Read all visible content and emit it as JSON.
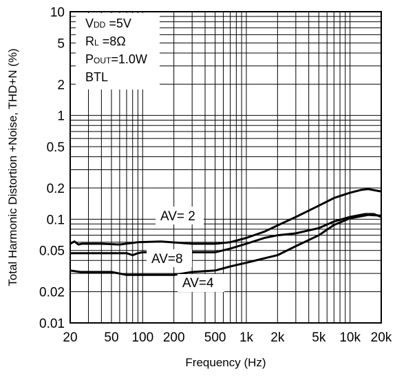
{
  "chart_data": {
    "type": "line",
    "title": "",
    "xlabel": "Frequency (Hz)",
    "ylabel": "Total Harmonic Distortion +Noise, THD+N (%)",
    "x_scale": "log",
    "y_scale": "log",
    "xlim": [
      20,
      20000
    ],
    "ylim": [
      0.01,
      10
    ],
    "grid": true,
    "x_ticks": [
      {
        "value": 20,
        "label": "20"
      },
      {
        "value": 50,
        "label": "50"
      },
      {
        "value": 100,
        "label": "100"
      },
      {
        "value": 200,
        "label": "200"
      },
      {
        "value": 500,
        "label": "500"
      },
      {
        "value": 1000,
        "label": "1k"
      },
      {
        "value": 2000,
        "label": "2k"
      },
      {
        "value": 5000,
        "label": "5k"
      },
      {
        "value": 10000,
        "label": "10k"
      },
      {
        "value": 20000,
        "label": "20k"
      }
    ],
    "y_ticks": [
      {
        "value": 10,
        "label": "10"
      },
      {
        "value": 5,
        "label": "5"
      },
      {
        "value": 2,
        "label": "2"
      },
      {
        "value": 1,
        "label": "1"
      },
      {
        "value": 0.5,
        "label": "0.5"
      },
      {
        "value": 0.2,
        "label": "0.2"
      },
      {
        "value": 0.1,
        "label": "0.1"
      },
      {
        "value": 0.05,
        "label": "0.05"
      },
      {
        "value": 0.02,
        "label": "0.02"
      },
      {
        "value": 0.01,
        "label": "0.01"
      }
    ],
    "conditions": {
      "vdd": {
        "main": "V",
        "sub": "DD",
        "value": " =5V"
      },
      "rl": {
        "main": "R",
        "sub": "L",
        "value": " =8Ω"
      },
      "pout": {
        "main": "P",
        "sub": "OUT",
        "value": "=1.0W"
      },
      "mode": "BTL"
    },
    "series": [
      {
        "name": "AV= 2",
        "x": [
          20,
          22,
          24,
          26,
          30,
          40,
          60,
          90,
          150,
          300,
          500,
          700,
          1000,
          1500,
          2000,
          3000,
          5000,
          7000,
          10000,
          13000,
          15000,
          20000
        ],
        "y": [
          0.058,
          0.061,
          0.057,
          0.058,
          0.058,
          0.058,
          0.057,
          0.06,
          0.061,
          0.058,
          0.058,
          0.06,
          0.066,
          0.076,
          0.087,
          0.105,
          0.135,
          0.16,
          0.18,
          0.192,
          0.195,
          0.185
        ]
      },
      {
        "name": "AV=8",
        "x": [
          20,
          30,
          50,
          70,
          80,
          90,
          100,
          200,
          300,
          500,
          700,
          1000,
          1500,
          2000,
          3000,
          5000,
          7000,
          10000,
          14000,
          17000,
          20000
        ],
        "y": [
          0.047,
          0.047,
          0.047,
          0.047,
          0.045,
          0.047,
          0.048,
          0.048,
          0.048,
          0.048,
          0.052,
          0.058,
          0.066,
          0.07,
          0.073,
          0.082,
          0.095,
          0.105,
          0.112,
          0.112,
          0.105
        ]
      },
      {
        "name": "AV=4",
        "x": [
          20,
          25,
          30,
          50,
          70,
          90,
          100,
          150,
          200,
          300,
          500,
          700,
          1000,
          1500,
          2000,
          3000,
          5000,
          7000,
          10000,
          15000,
          20000
        ],
        "y": [
          0.032,
          0.031,
          0.031,
          0.031,
          0.029,
          0.029,
          0.029,
          0.029,
          0.029,
          0.031,
          0.032,
          0.035,
          0.038,
          0.042,
          0.045,
          0.055,
          0.07,
          0.088,
          0.102,
          0.11,
          0.108
        ]
      }
    ],
    "series_labels": [
      "AV= 2",
      "AV=8",
      "AV=4"
    ]
  }
}
